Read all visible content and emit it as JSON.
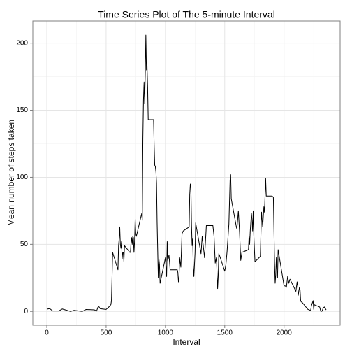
{
  "chart_data": {
    "type": "line",
    "title": "Time Series Plot of The 5-minute Interval",
    "x_label": "Interval",
    "y_label": "Mean number of steps taken",
    "x": [
      0,
      25,
      50,
      100,
      130,
      200,
      230,
      300,
      330,
      400,
      420,
      430,
      440,
      450,
      500,
      520,
      540,
      545,
      550,
      555,
      600,
      605,
      610,
      615,
      620,
      625,
      630,
      635,
      640,
      645,
      650,
      655,
      700,
      705,
      710,
      715,
      720,
      725,
      730,
      735,
      740,
      745,
      750,
      755,
      800,
      805,
      810,
      815,
      820,
      825,
      830,
      835,
      840,
      845,
      850,
      855,
      900,
      905,
      910,
      915,
      920,
      925,
      930,
      935,
      940,
      945,
      950,
      955,
      1000,
      1010,
      1015,
      1020,
      1030,
      1040,
      1100,
      1105,
      1110,
      1115,
      1120,
      1130,
      1140,
      1150,
      1200,
      1205,
      1210,
      1215,
      1220,
      1225,
      1230,
      1235,
      1240,
      1250,
      1255,
      1300,
      1310,
      1330,
      1345,
      1400,
      1410,
      1420,
      1430,
      1440,
      1445,
      1450,
      1455,
      1500,
      1510,
      1520,
      1535,
      1545,
      1550,
      1555,
      1600,
      1605,
      1615,
      1625,
      1635,
      1645,
      1700,
      1705,
      1710,
      1715,
      1725,
      1730,
      1735,
      1740,
      1745,
      1755,
      1800,
      1810,
      1820,
      1830,
      1835,
      1845,
      1850,
      1900,
      1910,
      1920,
      1925,
      1930,
      1935,
      1940,
      1945,
      1950,
      2000,
      2010,
      2020,
      2030,
      2040,
      2050,
      2100,
      2110,
      2115,
      2120,
      2130,
      2135,
      2140,
      2145,
      2150,
      2200,
      2215,
      2225,
      2230,
      2245,
      2250,
      2255,
      2300,
      2310,
      2320,
      2330,
      2340,
      2355
    ],
    "series": [
      {
        "name": "steps",
        "color": "#000000",
        "values": [
          1.7,
          2.1,
          0.3,
          0.3,
          1.8,
          0,
          0.8,
          0,
          1.4,
          1.2,
          0.3,
          3,
          3.5,
          2,
          1.5,
          3,
          5,
          8,
          25,
          44,
          31,
          49,
          54,
          63,
          50,
          47,
          52,
          39,
          44,
          44,
          37,
          49,
          44,
          44,
          51,
          55,
          50,
          56,
          55,
          44,
          52,
          69,
          58,
          56,
          73,
          68,
          129,
          158,
          171,
          155,
          177,
          206,
          180,
          183,
          167,
          143,
          143,
          124,
          109,
          108,
          104,
          96,
          66,
          45,
          25,
          39,
          35,
          21,
          40,
          26,
          52,
          38,
          42,
          31,
          31,
          29,
          22,
          26,
          40,
          33,
          58,
          60,
          63,
          87,
          95,
          92,
          64,
          49,
          54,
          33,
          26,
          44,
          66,
          43,
          56,
          40,
          64,
          64,
          56,
          36,
          40,
          17,
          26,
          43,
          42,
          30,
          35,
          45,
          65,
          98,
          102,
          84,
          62,
          64,
          75,
          59,
          38,
          44,
          46,
          56,
          50,
          60,
          73,
          68,
          60,
          75,
          57,
          37,
          41,
          74,
          63,
          78,
          74,
          99,
          86,
          86,
          85,
          36,
          21,
          27,
          40,
          30,
          25,
          46,
          19,
          19,
          18,
          26,
          21,
          24,
          15,
          22,
          19,
          12,
          18,
          16,
          8,
          7,
          7,
          1.6,
          1,
          1,
          4,
          8,
          1.6,
          5,
          3.3,
          0,
          0.2,
          2.6,
          3.3,
          1.1
        ]
      }
    ],
    "xlim": [
      -117.75,
      2472.75
    ],
    "ylim": [
      -10.3,
      216.5
    ],
    "xticks": [
      0,
      500,
      1000,
      1500,
      2000
    ],
    "yticks": [
      0,
      50,
      100,
      150,
      200
    ],
    "x_minor_ticks": [
      250,
      750,
      1250,
      1750,
      2250
    ],
    "y_minor_ticks": [
      25,
      75,
      125,
      175
    ],
    "grid": true
  }
}
